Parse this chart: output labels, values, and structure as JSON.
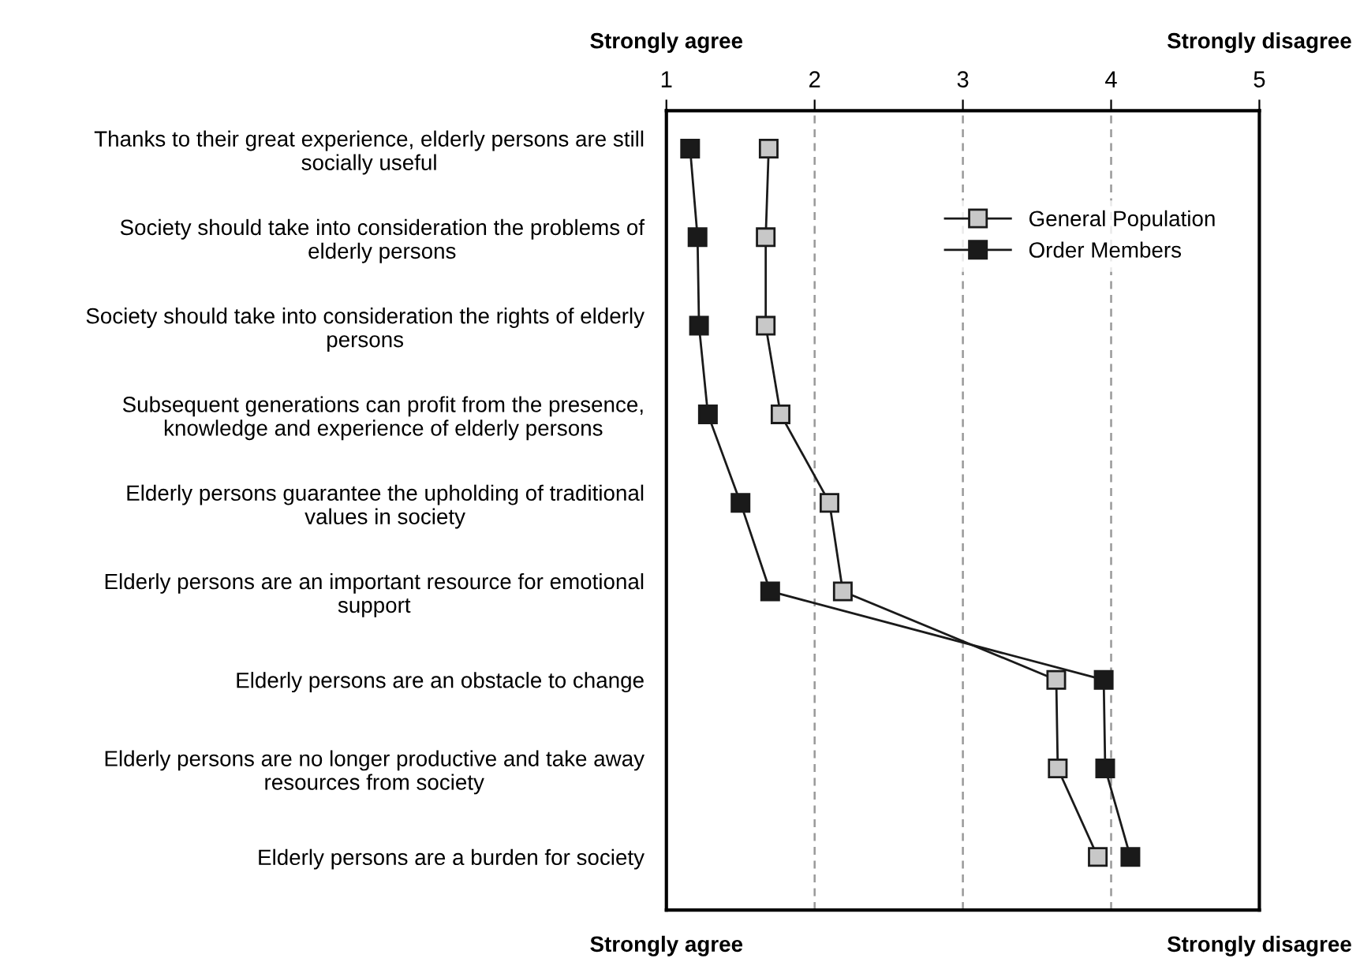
{
  "chart_data": {
    "type": "line",
    "orientation": "horizontal",
    "categories": [
      "Thanks to their great experience, elderly persons are still\nsocially useful",
      "Society should take into consideration the problems of\nelderly persons",
      "Society should take into consideration the rights of elderly\npersons",
      "Subsequent generations can profit from the presence,\nknowledge and experience of elderly persons",
      "Elderly persons guarantee the upholding of traditional\nvalues in society",
      "Elderly persons are an important resource for emotional\nsupport",
      "Elderly persons are an obstacle to change",
      "Elderly persons are no longer productive and take away\nresources from society",
      "Elderly persons are a burden for society"
    ],
    "series": [
      {
        "name": "General Population",
        "color": "#c8c8c8",
        "values": [
          1.69,
          1.67,
          1.67,
          1.77,
          2.1,
          2.19,
          3.63,
          3.64,
          3.91
        ]
      },
      {
        "name": "Order Members",
        "color": "#1a1a1a",
        "values": [
          1.16,
          1.21,
          1.22,
          1.28,
          1.5,
          1.7,
          3.95,
          3.96,
          4.13
        ]
      }
    ],
    "xlim": [
      1,
      5
    ],
    "xticks": [
      1,
      2,
      3,
      4,
      5
    ],
    "grid": "x",
    "marker": "square",
    "line_style": "solid",
    "legend": "top right",
    "annotations": [
      "Strongly agree",
      "Strongly disagree",
      "Strongly agree",
      "Strongly disagree"
    ]
  }
}
